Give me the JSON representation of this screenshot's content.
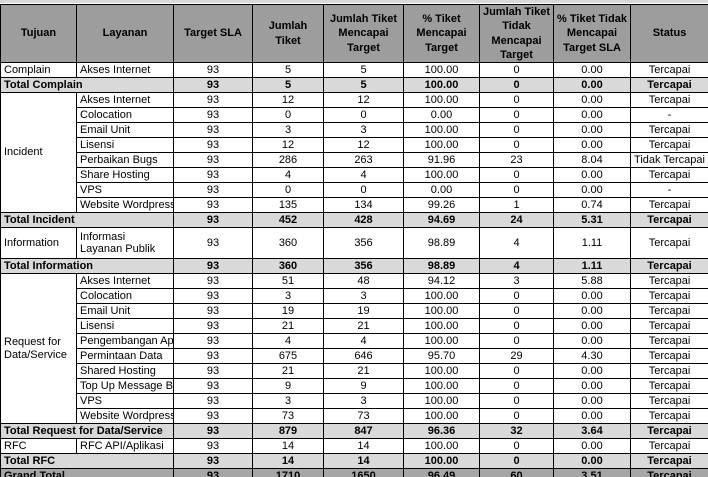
{
  "colors": {
    "header_bg": "#9d9d9d",
    "total_bg": "#d9d9d9",
    "grand_bg": "#a6a6a6",
    "grid_border": "#000000",
    "text": "#000000"
  },
  "table": {
    "headers": [
      "Tujuan",
      "Layanan",
      "Target SLA",
      "Jumlah Tiket",
      "Jumlah Tiket Mencapai Target",
      "% Tiket Mencapai Target",
      "Jumlah Tiket Tidak Mencapai Target",
      "% Tiket Tidak Mencapai Target SLA",
      "Status"
    ],
    "rows": [
      {
        "cls": "data",
        "cells": [
          {
            "t": "Complain",
            "l": 1
          },
          {
            "t": "Akses Internet",
            "l": 1
          },
          {
            "t": "93"
          },
          {
            "t": "5"
          },
          {
            "t": "5"
          },
          {
            "t": "100.00"
          },
          {
            "t": "0"
          },
          {
            "t": "0.00"
          },
          {
            "t": "Tercapai"
          }
        ]
      },
      {
        "cls": "total",
        "cells": [
          {
            "t": "Total Complain",
            "cs": 2,
            "l": 1
          },
          {
            "t": "93"
          },
          {
            "t": "5"
          },
          {
            "t": "5"
          },
          {
            "t": "100.00"
          },
          {
            "t": "0"
          },
          {
            "t": "0.00"
          },
          {
            "t": "Tercapai"
          }
        ]
      },
      {
        "cls": "data",
        "cells": [
          {
            "t": "Incident",
            "rs": 8,
            "l": 1
          },
          {
            "t": "Akses Internet",
            "l": 1
          },
          {
            "t": "93"
          },
          {
            "t": "12"
          },
          {
            "t": "12"
          },
          {
            "t": "100.00"
          },
          {
            "t": "0"
          },
          {
            "t": "0.00"
          },
          {
            "t": "Tercapai"
          }
        ]
      },
      {
        "cls": "data",
        "cells": [
          {
            "t": "Colocation",
            "l": 1
          },
          {
            "t": "93"
          },
          {
            "t": "0"
          },
          {
            "t": "0"
          },
          {
            "t": "0.00"
          },
          {
            "t": "0"
          },
          {
            "t": "0.00"
          },
          {
            "t": "-"
          }
        ]
      },
      {
        "cls": "data",
        "cells": [
          {
            "t": "Email Unit",
            "l": 1
          },
          {
            "t": "93"
          },
          {
            "t": "3"
          },
          {
            "t": "3"
          },
          {
            "t": "100.00"
          },
          {
            "t": "0"
          },
          {
            "t": "0.00"
          },
          {
            "t": "Tercapai"
          }
        ]
      },
      {
        "cls": "data",
        "cells": [
          {
            "t": "Lisensi",
            "l": 1
          },
          {
            "t": "93"
          },
          {
            "t": "12"
          },
          {
            "t": "12"
          },
          {
            "t": "100.00"
          },
          {
            "t": "0"
          },
          {
            "t": "0.00"
          },
          {
            "t": "Tercapai"
          }
        ]
      },
      {
        "cls": "data",
        "cells": [
          {
            "t": "Perbaikan Bugs",
            "l": 1
          },
          {
            "t": "93"
          },
          {
            "t": "286"
          },
          {
            "t": "263"
          },
          {
            "t": "91.96"
          },
          {
            "t": "23"
          },
          {
            "t": "8.04"
          },
          {
            "t": "Tidak Tercapai"
          }
        ]
      },
      {
        "cls": "data",
        "cells": [
          {
            "t": "Share Hosting",
            "l": 1
          },
          {
            "t": "93"
          },
          {
            "t": "4"
          },
          {
            "t": "4"
          },
          {
            "t": "100.00"
          },
          {
            "t": "0"
          },
          {
            "t": "0.00"
          },
          {
            "t": "Tercapai"
          }
        ]
      },
      {
        "cls": "data",
        "cells": [
          {
            "t": "VPS",
            "l": 1
          },
          {
            "t": "93"
          },
          {
            "t": "0"
          },
          {
            "t": "0"
          },
          {
            "t": "0.00"
          },
          {
            "t": "0"
          },
          {
            "t": "0.00"
          },
          {
            "t": "-"
          }
        ]
      },
      {
        "cls": "data",
        "cells": [
          {
            "t": "Website Wordpress",
            "l": 1
          },
          {
            "t": "93"
          },
          {
            "t": "135"
          },
          {
            "t": "134"
          },
          {
            "t": "99.26"
          },
          {
            "t": "1"
          },
          {
            "t": "0.74"
          },
          {
            "t": "Tercapai"
          }
        ]
      },
      {
        "cls": "total",
        "cells": [
          {
            "t": "Total Incident",
            "cs": 2,
            "l": 1
          },
          {
            "t": "93"
          },
          {
            "t": "452"
          },
          {
            "t": "428"
          },
          {
            "t": "94.69"
          },
          {
            "t": "24"
          },
          {
            "t": "5.31"
          },
          {
            "t": "Tercapai"
          }
        ]
      },
      {
        "cls": "data",
        "tall": 1,
        "cells": [
          {
            "t": "Information",
            "l": 1
          },
          {
            "t": "Informasi Layanan Publik",
            "l": 1,
            "wrap": 1
          },
          {
            "t": "93"
          },
          {
            "t": "360"
          },
          {
            "t": "356"
          },
          {
            "t": "98.89"
          },
          {
            "t": "4"
          },
          {
            "t": "1.11"
          },
          {
            "t": "Tercapai"
          }
        ]
      },
      {
        "cls": "total",
        "cells": [
          {
            "t": "Total Information",
            "cs": 2,
            "l": 1
          },
          {
            "t": "93"
          },
          {
            "t": "360"
          },
          {
            "t": "356"
          },
          {
            "t": "98.89"
          },
          {
            "t": "4"
          },
          {
            "t": "1.11"
          },
          {
            "t": "Tercapai"
          }
        ]
      },
      {
        "cls": "data",
        "cells": [
          {
            "t": "Request for Data/Service",
            "rs": 10,
            "l": 1,
            "wrap": 1
          },
          {
            "t": "Akses Internet",
            "l": 1
          },
          {
            "t": "93"
          },
          {
            "t": "51"
          },
          {
            "t": "48"
          },
          {
            "t": "94.12"
          },
          {
            "t": "3"
          },
          {
            "t": "5.88"
          },
          {
            "t": "Tercapai"
          }
        ]
      },
      {
        "cls": "data",
        "cells": [
          {
            "t": "Colocation",
            "l": 1
          },
          {
            "t": "93"
          },
          {
            "t": "3"
          },
          {
            "t": "3"
          },
          {
            "t": "100.00"
          },
          {
            "t": "0"
          },
          {
            "t": "0.00"
          },
          {
            "t": "Tercapai"
          }
        ]
      },
      {
        "cls": "data",
        "cells": [
          {
            "t": "Email Unit",
            "l": 1
          },
          {
            "t": "93"
          },
          {
            "t": "19"
          },
          {
            "t": "19"
          },
          {
            "t": "100.00"
          },
          {
            "t": "0"
          },
          {
            "t": "0.00"
          },
          {
            "t": "Tercapai"
          }
        ]
      },
      {
        "cls": "data",
        "cells": [
          {
            "t": "Lisensi",
            "l": 1
          },
          {
            "t": "93"
          },
          {
            "t": "21"
          },
          {
            "t": "21"
          },
          {
            "t": "100.00"
          },
          {
            "t": "0"
          },
          {
            "t": "0.00"
          },
          {
            "t": "Tercapai"
          }
        ]
      },
      {
        "cls": "data",
        "cells": [
          {
            "t": "Pengembangan Aplikasi",
            "l": 1
          },
          {
            "t": "93"
          },
          {
            "t": "4"
          },
          {
            "t": "4"
          },
          {
            "t": "100.00"
          },
          {
            "t": "0"
          },
          {
            "t": "0.00"
          },
          {
            "t": "Tercapai"
          }
        ]
      },
      {
        "cls": "data",
        "cells": [
          {
            "t": "Permintaan Data",
            "l": 1
          },
          {
            "t": "93"
          },
          {
            "t": "675"
          },
          {
            "t": "646"
          },
          {
            "t": "95.70"
          },
          {
            "t": "29"
          },
          {
            "t": "4.30"
          },
          {
            "t": "Tercapai"
          }
        ]
      },
      {
        "cls": "data",
        "cells": [
          {
            "t": "Shared Hosting",
            "l": 1
          },
          {
            "t": "93"
          },
          {
            "t": "21"
          },
          {
            "t": "21"
          },
          {
            "t": "100.00"
          },
          {
            "t": "0"
          },
          {
            "t": "0.00"
          },
          {
            "t": "Tercapai"
          }
        ]
      },
      {
        "cls": "data",
        "cells": [
          {
            "t": "Top Up Message Broadcast",
            "l": 1
          },
          {
            "t": "93"
          },
          {
            "t": "9"
          },
          {
            "t": "9"
          },
          {
            "t": "100.00"
          },
          {
            "t": "0"
          },
          {
            "t": "0.00"
          },
          {
            "t": "Tercapai"
          }
        ]
      },
      {
        "cls": "data",
        "cells": [
          {
            "t": "VPS",
            "l": 1
          },
          {
            "t": "93"
          },
          {
            "t": "3"
          },
          {
            "t": "3"
          },
          {
            "t": "100.00"
          },
          {
            "t": "0"
          },
          {
            "t": "0.00"
          },
          {
            "t": "Tercapai"
          }
        ]
      },
      {
        "cls": "data",
        "cells": [
          {
            "t": "Website Wordpress",
            "l": 1
          },
          {
            "t": "93"
          },
          {
            "t": "73"
          },
          {
            "t": "73"
          },
          {
            "t": "100.00"
          },
          {
            "t": "0"
          },
          {
            "t": "0.00"
          },
          {
            "t": "Tercapai"
          }
        ]
      },
      {
        "cls": "total",
        "cells": [
          {
            "t": "Total Request for Data/Service",
            "cs": 2,
            "l": 1
          },
          {
            "t": "93"
          },
          {
            "t": "879"
          },
          {
            "t": "847"
          },
          {
            "t": "96.36"
          },
          {
            "t": "32"
          },
          {
            "t": "3.64"
          },
          {
            "t": "Tercapai"
          }
        ]
      },
      {
        "cls": "data",
        "cells": [
          {
            "t": "RFC",
            "l": 1
          },
          {
            "t": "RFC API/Aplikasi",
            "l": 1
          },
          {
            "t": "93"
          },
          {
            "t": "14"
          },
          {
            "t": "14"
          },
          {
            "t": "100.00"
          },
          {
            "t": "0"
          },
          {
            "t": "0.00"
          },
          {
            "t": "Tercapai"
          }
        ]
      },
      {
        "cls": "total",
        "cells": [
          {
            "t": "Total RFC",
            "cs": 2,
            "l": 1
          },
          {
            "t": "93"
          },
          {
            "t": "14"
          },
          {
            "t": "14"
          },
          {
            "t": "100.00"
          },
          {
            "t": "0"
          },
          {
            "t": "0.00"
          },
          {
            "t": "Tercapai"
          }
        ]
      },
      {
        "cls": "grand",
        "cells": [
          {
            "t": "Grand Total",
            "cs": 2,
            "l": 1
          },
          {
            "t": "93"
          },
          {
            "t": "1710"
          },
          {
            "t": "1650"
          },
          {
            "t": "96.49"
          },
          {
            "t": "60"
          },
          {
            "t": "3.51"
          },
          {
            "t": "Tercapai"
          }
        ]
      }
    ]
  }
}
